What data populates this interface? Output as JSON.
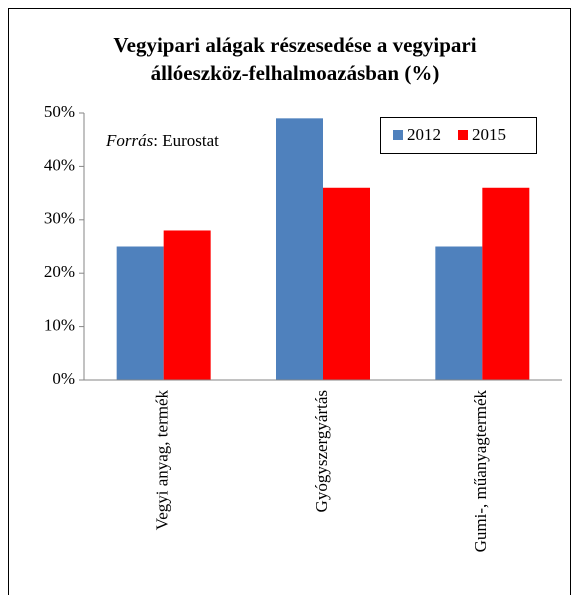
{
  "chart_data": {
    "type": "bar",
    "title": [
      "Vegyipari alágak részesedése a vegyipari",
      "állóeszköz-felhalmoazásban (%)"
    ],
    "annotation": [
      "Forrás",
      ": Eurostat"
    ],
    "categories": [
      "Vegyi anyag, termék",
      "Gyógyszergyártás",
      "Gumi-, műanyagtermék"
    ],
    "series": [
      {
        "name": "2012",
        "color": "#4f81bd",
        "values": [
          25,
          49,
          25
        ]
      },
      {
        "name": "2015",
        "color": "#ff0000",
        "values": [
          28,
          36,
          36
        ]
      }
    ],
    "ylim": [
      0,
      50
    ],
    "yticks": [
      {
        "value": 0,
        "label": "0%"
      },
      {
        "value": 10,
        "label": "10%"
      },
      {
        "value": 20,
        "label": "20%"
      },
      {
        "value": 30,
        "label": "30%"
      },
      {
        "value": 40,
        "label": "40%"
      },
      {
        "value": 50,
        "label": "50%"
      }
    ],
    "grid": false,
    "legend": "top-right"
  }
}
